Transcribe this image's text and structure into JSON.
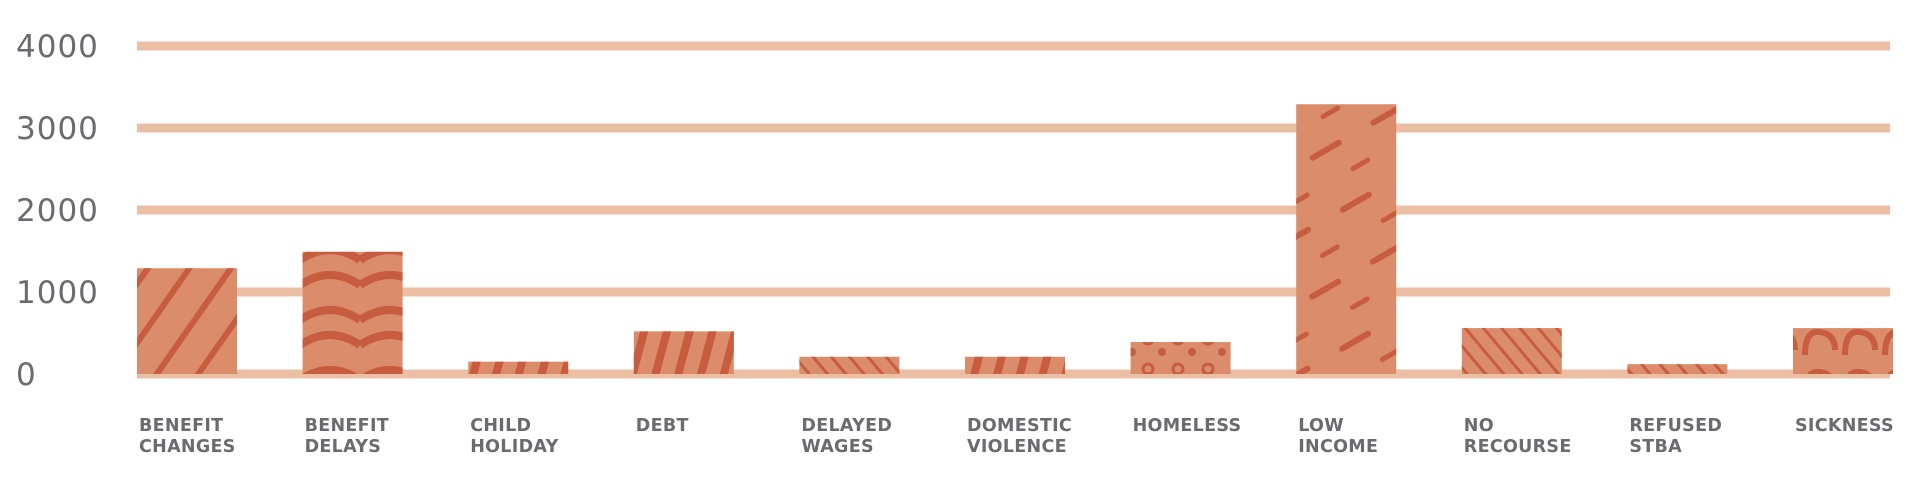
{
  "colors": {
    "grid": "#eabfa4",
    "bar_fill": "#db8d6b",
    "bar_pattern": "#c75c3f",
    "text": "#6b6a70"
  },
  "chart_data": {
    "type": "bar",
    "categories": [
      "BENEFIT\nCHANGES",
      "BENEFIT\nDELAYS",
      "CHILD\nHOLIDAY",
      "DEBT",
      "DELAYED\nWAGES",
      "DOMESTIC\nVIOLENCE",
      "HOMELESS",
      "LOW\nINCOME",
      "NO\nRECOURSE",
      "REFUSED\nSTBA",
      "SICKNESS"
    ],
    "values": [
      1290,
      1490,
      150,
      520,
      210,
      210,
      390,
      3290,
      560,
      120,
      560
    ],
    "yticks": [
      "0",
      "1000",
      "2000",
      "3000",
      "4000"
    ],
    "ylim": [
      0,
      4000
    ],
    "grid": true,
    "title": "",
    "xlabel": "",
    "ylabel": ""
  }
}
